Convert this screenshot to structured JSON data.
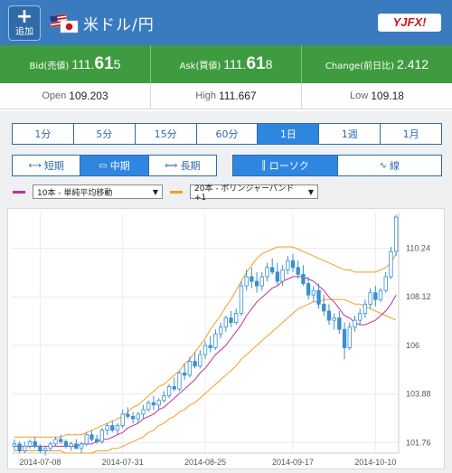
{
  "header": {
    "add_label": "追加",
    "add_icon": "plus-icon",
    "pair": "米ドル/円",
    "broker_logo": "YJFX!",
    "bg_color": "#3a7bbf"
  },
  "quote": {
    "bid_label": "Bid(売値)",
    "bid_prefix": "111.",
    "bid_big": "61",
    "bid_suffix": "5",
    "ask_label": "Ask(買値)",
    "ask_prefix": "111.",
    "ask_big": "61",
    "ask_suffix": "8",
    "change_label": "Change(前日比)",
    "change_value": "2.412",
    "bg_color": "#3f9b3f"
  },
  "ohl": {
    "open_label": "Open",
    "open_value": "109.203",
    "high_label": "High",
    "high_value": "111.667",
    "low_label": "Low",
    "low_value": "109.18"
  },
  "periods": [
    "1分",
    "5分",
    "15分",
    "60分",
    "1日",
    "1週",
    "1月"
  ],
  "active_period": "1日",
  "terms": {
    "short": "短期",
    "mid": "中期",
    "long": "長期",
    "active": "中期"
  },
  "chart_types": {
    "candle": "ローソク",
    "line": "線",
    "active": "ローソク"
  },
  "indicators": {
    "ma_color": "#c0309e",
    "ma_select": "10本 - 単純平均移動",
    "bb_color": "#f0a020",
    "bb_select": "20本 - ボリンジャーバンド+1"
  },
  "chart_data": {
    "type": "candlestick",
    "y_ticks": [
      "110.24",
      "108.12",
      "106",
      "103.88",
      "101.76"
    ],
    "x_ticks": [
      "2014-07-08",
      "2014-07-31",
      "2014-08-25",
      "2014-09-17",
      "2014-10-10"
    ],
    "ylim": [
      101.3,
      111.8
    ],
    "colors": {
      "candle": "#3a8fcf",
      "ma": "#c0309e",
      "bb": "#f0a020"
    },
    "candles": [
      [
        101.6,
        101.9,
        101.4,
        101.7
      ],
      [
        101.7,
        101.8,
        101.3,
        101.4
      ],
      [
        101.4,
        101.8,
        101.3,
        101.6
      ],
      [
        101.6,
        101.9,
        101.5,
        101.8
      ],
      [
        101.8,
        102.0,
        101.5,
        101.6
      ],
      [
        101.6,
        101.7,
        101.3,
        101.4
      ],
      [
        101.4,
        101.6,
        101.2,
        101.5
      ],
      [
        101.5,
        101.8,
        101.4,
        101.7
      ],
      [
        101.7,
        102.0,
        101.6,
        101.9
      ],
      [
        101.9,
        102.1,
        101.7,
        101.8
      ],
      [
        101.8,
        101.9,
        101.5,
        101.6
      ],
      [
        101.6,
        101.8,
        101.4,
        101.7
      ],
      [
        101.7,
        101.9,
        101.5,
        101.5
      ],
      [
        101.5,
        101.8,
        101.3,
        101.7
      ],
      [
        101.7,
        102.2,
        101.6,
        102.1
      ],
      [
        102.1,
        102.3,
        101.8,
        101.9
      ],
      [
        101.9,
        102.1,
        101.7,
        101.8
      ],
      [
        101.8,
        102.4,
        101.7,
        102.3
      ],
      [
        102.3,
        102.6,
        102.1,
        102.5
      ],
      [
        102.5,
        102.7,
        102.2,
        102.3
      ],
      [
        102.3,
        102.6,
        102.1,
        102.5
      ],
      [
        102.5,
        103.2,
        102.4,
        103.0
      ],
      [
        103.0,
        103.3,
        102.8,
        102.9
      ],
      [
        102.9,
        103.1,
        102.6,
        102.8
      ],
      [
        102.8,
        103.1,
        102.6,
        103.0
      ],
      [
        103.0,
        103.4,
        102.8,
        103.2
      ],
      [
        103.2,
        103.6,
        103.1,
        103.5
      ],
      [
        103.5,
        103.8,
        103.2,
        103.4
      ],
      [
        103.4,
        103.7,
        103.2,
        103.6
      ],
      [
        103.6,
        104.0,
        103.5,
        103.8
      ],
      [
        103.8,
        104.3,
        103.7,
        104.2
      ],
      [
        104.2,
        104.6,
        104.0,
        104.1
      ],
      [
        104.1,
        104.9,
        104.0,
        104.8
      ],
      [
        104.8,
        105.2,
        104.5,
        104.7
      ],
      [
        104.7,
        105.5,
        104.6,
        105.3
      ],
      [
        105.3,
        105.7,
        105.0,
        105.1
      ],
      [
        105.1,
        105.8,
        105.0,
        105.6
      ],
      [
        105.6,
        106.2,
        105.4,
        106.0
      ],
      [
        106.0,
        106.4,
        105.7,
        105.9
      ],
      [
        105.9,
        106.7,
        105.8,
        106.5
      ],
      [
        106.5,
        107.0,
        106.3,
        106.8
      ],
      [
        106.8,
        107.3,
        106.6,
        107.2
      ],
      [
        107.2,
        107.5,
        106.8,
        107.0
      ],
      [
        107.0,
        107.6,
        106.9,
        107.4
      ],
      [
        107.4,
        108.8,
        107.3,
        108.6
      ],
      [
        108.6,
        109.3,
        108.4,
        109.0
      ],
      [
        109.0,
        109.4,
        108.5,
        108.8
      ],
      [
        108.8,
        109.2,
        108.3,
        108.6
      ],
      [
        108.6,
        109.2,
        108.4,
        109.0
      ],
      [
        109.0,
        109.6,
        108.8,
        109.4
      ],
      [
        109.4,
        109.8,
        109.1,
        109.2
      ],
      [
        109.2,
        109.6,
        108.6,
        108.8
      ],
      [
        108.8,
        109.5,
        108.6,
        109.3
      ],
      [
        109.3,
        109.9,
        109.1,
        109.7
      ],
      [
        109.7,
        110.0,
        109.2,
        109.4
      ],
      [
        109.4,
        109.7,
        108.9,
        109.1
      ],
      [
        109.1,
        109.5,
        108.6,
        108.7
      ],
      [
        108.7,
        109.0,
        108.0,
        108.2
      ],
      [
        108.2,
        108.6,
        107.9,
        108.4
      ],
      [
        108.4,
        108.7,
        107.6,
        107.8
      ],
      [
        107.8,
        108.2,
        107.3,
        107.5
      ],
      [
        107.5,
        107.8,
        106.9,
        107.1
      ],
      [
        107.1,
        107.4,
        106.7,
        107.2
      ],
      [
        107.2,
        107.5,
        106.5,
        106.7
      ],
      [
        106.7,
        107.0,
        105.4,
        105.9
      ],
      [
        105.9,
        107.0,
        105.8,
        106.8
      ],
      [
        106.8,
        107.3,
        106.6,
        107.1
      ],
      [
        107.1,
        107.6,
        106.9,
        107.4
      ],
      [
        107.4,
        108.0,
        107.2,
        107.8
      ],
      [
        107.8,
        108.5,
        107.6,
        108.3
      ],
      [
        108.3,
        108.6,
        107.7,
        108.0
      ],
      [
        108.0,
        108.5,
        107.9,
        108.4
      ],
      [
        108.4,
        109.2,
        108.3,
        109.0
      ],
      [
        109.0,
        110.3,
        108.9,
        110.1
      ],
      [
        110.1,
        111.7,
        109.9,
        111.6
      ]
    ],
    "ma": [
      101.6,
      101.6,
      101.6,
      101.6,
      101.6,
      101.6,
      101.6,
      101.6,
      101.6,
      101.6,
      101.6,
      101.6,
      101.6,
      101.7,
      101.7,
      101.7,
      101.8,
      101.9,
      101.9,
      102.0,
      102.1,
      102.2,
      102.4,
      102.5,
      102.6,
      102.8,
      102.9,
      103.0,
      103.2,
      103.3,
      103.5,
      103.7,
      103.9,
      104.1,
      104.3,
      104.5,
      104.8,
      105.0,
      105.3,
      105.6,
      105.8,
      106.0,
      106.3,
      106.6,
      106.9,
      107.3,
      107.6,
      107.9,
      108.1,
      108.3,
      108.5,
      108.6,
      108.8,
      108.9,
      109.0,
      109.0,
      109.0,
      108.9,
      108.8,
      108.6,
      108.4,
      108.1,
      107.9,
      107.6,
      107.3,
      107.2,
      107.0,
      106.9,
      106.9,
      107.0,
      107.1,
      107.3,
      107.5,
      107.8,
      108.2
    ],
    "bb_upper": [
      102.0,
      102.0,
      102.0,
      102.0,
      102.0,
      102.0,
      102.0,
      102.0,
      102.0,
      102.0,
      102.1,
      102.1,
      102.1,
      102.1,
      102.2,
      102.3,
      102.4,
      102.5,
      102.6,
      102.7,
      102.8,
      102.9,
      103.1,
      103.3,
      103.4,
      103.6,
      103.8,
      104.0,
      104.2,
      104.3,
      104.5,
      104.7,
      104.9,
      105.2,
      105.4,
      105.7,
      106.0,
      106.3,
      106.7,
      107.0,
      107.3,
      107.7,
      108.0,
      108.4,
      108.8,
      109.2,
      109.5,
      109.8,
      110.0,
      110.1,
      110.2,
      110.3,
      110.3,
      110.3,
      110.3,
      110.2,
      110.1,
      110.0,
      109.9,
      109.8,
      109.7,
      109.6,
      109.5,
      109.4,
      109.3,
      109.3,
      109.2,
      109.2,
      109.2,
      109.2,
      109.2,
      109.3,
      109.4,
      109.6,
      110.0
    ],
    "bb_lower": [
      101.4,
      101.4,
      101.4,
      101.4,
      101.4,
      101.4,
      101.4,
      101.4,
      101.4,
      101.4,
      101.3,
      101.3,
      101.3,
      101.3,
      101.3,
      101.3,
      101.4,
      101.4,
      101.4,
      101.5,
      101.5,
      101.6,
      101.7,
      101.8,
      101.9,
      102.0,
      102.2,
      102.3,
      102.5,
      102.6,
      102.8,
      102.9,
      103.1,
      103.2,
      103.4,
      103.5,
      103.7,
      103.9,
      104.1,
      104.3,
      104.5,
      104.7,
      104.9,
      105.1,
      105.4,
      105.6,
      105.8,
      106.0,
      106.2,
      106.4,
      106.6,
      106.8,
      107.0,
      107.2,
      107.4,
      107.6,
      107.7,
      107.8,
      107.9,
      107.9,
      108.0,
      108.0,
      108.0,
      108.0,
      108.0,
      107.9,
      107.8,
      107.8,
      107.7,
      107.6,
      107.5,
      107.4,
      107.3,
      107.2,
      107.1
    ]
  }
}
